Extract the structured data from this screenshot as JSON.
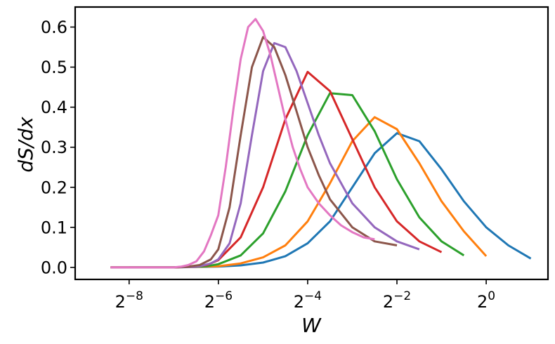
{
  "chart_data": {
    "type": "line",
    "xlabel": "W",
    "ylabel": "dS/dx",
    "x_scale": "log2",
    "xlim": [
      0.00169,
      2.61
    ],
    "ylim": [
      -0.03,
      0.65
    ],
    "grid": false,
    "legend": "none",
    "x_ticks": [
      {
        "value": 0.00390625,
        "base": "2",
        "exp": "−8"
      },
      {
        "value": 0.015625,
        "base": "2",
        "exp": "−6"
      },
      {
        "value": 0.0625,
        "base": "2",
        "exp": "−4"
      },
      {
        "value": 0.25,
        "base": "2",
        "exp": "−2"
      },
      {
        "value": 1,
        "base": "2",
        "exp": "0"
      }
    ],
    "y_ticks": [
      {
        "value": 0.0,
        "label": "0.0"
      },
      {
        "value": 0.1,
        "label": "0.1"
      },
      {
        "value": 0.2,
        "label": "0.2"
      },
      {
        "value": 0.3,
        "label": "0.3"
      },
      {
        "value": 0.4,
        "label": "0.4"
      },
      {
        "value": 0.5,
        "label": "0.5"
      },
      {
        "value": 0.6,
        "label": "0.6"
      }
    ],
    "series": [
      {
        "color": "#1f77b4",
        "x": [
          0.00390625,
          0.0078,
          0.0156,
          0.0221,
          0.0313,
          0.0442,
          0.0625,
          0.0884,
          0.125,
          0.177,
          0.25,
          0.354,
          0.5,
          0.707,
          1.0,
          1.41,
          2.0
        ],
        "y": [
          0.0,
          0.0,
          0.002,
          0.005,
          0.012,
          0.028,
          0.06,
          0.115,
          0.2,
          0.285,
          0.335,
          0.315,
          0.245,
          0.165,
          0.1,
          0.055,
          0.022
        ]
      },
      {
        "color": "#ff7f0e",
        "x": [
          0.00293,
          0.0078,
          0.0156,
          0.0221,
          0.0313,
          0.0442,
          0.0625,
          0.0884,
          0.125,
          0.177,
          0.25,
          0.354,
          0.5,
          0.707,
          1.0
        ],
        "y": [
          0.0,
          0.0,
          0.003,
          0.01,
          0.025,
          0.055,
          0.115,
          0.21,
          0.315,
          0.375,
          0.345,
          0.26,
          0.165,
          0.09,
          0.028
        ]
      },
      {
        "color": "#2ca02c",
        "x": [
          0.00293,
          0.0078,
          0.0131,
          0.0156,
          0.0221,
          0.0313,
          0.0442,
          0.0625,
          0.0884,
          0.125,
          0.177,
          0.25,
          0.354,
          0.5,
          0.707
        ],
        "y": [
          0.0,
          0.0,
          0.003,
          0.008,
          0.03,
          0.085,
          0.19,
          0.33,
          0.435,
          0.43,
          0.34,
          0.22,
          0.125,
          0.065,
          0.03
        ]
      },
      {
        "color": "#d62728",
        "x": [
          0.00293,
          0.0078,
          0.0111,
          0.0131,
          0.0156,
          0.0221,
          0.0313,
          0.0442,
          0.0625,
          0.0884,
          0.125,
          0.177,
          0.25,
          0.354,
          0.5
        ],
        "y": [
          0.0,
          0.0,
          0.002,
          0.006,
          0.018,
          0.075,
          0.2,
          0.37,
          0.488,
          0.44,
          0.32,
          0.2,
          0.115,
          0.065,
          0.038
        ]
      },
      {
        "color": "#9467bd",
        "x": [
          0.00293,
          0.0078,
          0.0098,
          0.0117,
          0.0139,
          0.0156,
          0.0186,
          0.0221,
          0.0263,
          0.0313,
          0.0372,
          0.0442,
          0.0526,
          0.0625,
          0.0743,
          0.0884,
          0.125,
          0.177,
          0.25,
          0.354
        ],
        "y": [
          0.0,
          0.0,
          0.001,
          0.003,
          0.01,
          0.02,
          0.06,
          0.16,
          0.33,
          0.49,
          0.56,
          0.55,
          0.49,
          0.41,
          0.33,
          0.26,
          0.16,
          0.1,
          0.065,
          0.045
        ]
      },
      {
        "color": "#8c564b",
        "x": [
          0.00293,
          0.0078,
          0.0098,
          0.0117,
          0.0139,
          0.0156,
          0.0186,
          0.0221,
          0.0263,
          0.0313,
          0.0372,
          0.0442,
          0.0526,
          0.0625,
          0.0743,
          0.0884,
          0.125,
          0.177,
          0.25
        ],
        "y": [
          0.0,
          0.0,
          0.002,
          0.006,
          0.02,
          0.045,
          0.15,
          0.33,
          0.5,
          0.575,
          0.55,
          0.48,
          0.39,
          0.3,
          0.23,
          0.17,
          0.1,
          0.065,
          0.055
        ]
      },
      {
        "color": "#e377c2",
        "x": [
          0.00293,
          0.0078,
          0.0088,
          0.0098,
          0.0111,
          0.0125,
          0.0139,
          0.0156,
          0.0175,
          0.0198,
          0.0221,
          0.0248,
          0.0278,
          0.0313,
          0.0351,
          0.0394,
          0.0442,
          0.0496,
          0.0557,
          0.0625,
          0.0743,
          0.0884,
          0.105,
          0.125,
          0.149,
          0.177
        ],
        "y": [
          0.0,
          0.0,
          0.002,
          0.006,
          0.015,
          0.04,
          0.08,
          0.13,
          0.25,
          0.4,
          0.52,
          0.6,
          0.62,
          0.59,
          0.53,
          0.45,
          0.37,
          0.3,
          0.245,
          0.2,
          0.16,
          0.13,
          0.105,
          0.088,
          0.075,
          0.07
        ]
      }
    ]
  }
}
